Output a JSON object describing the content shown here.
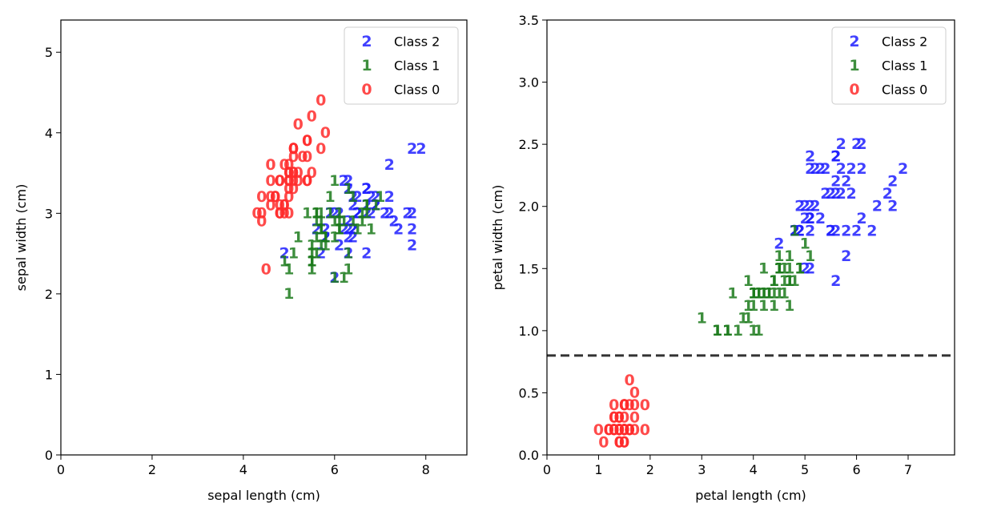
{
  "colors": {
    "class2": "#1f1fff",
    "class1": "#1b7a1b",
    "class0": "#ff2a2a",
    "threshold": "#333333"
  },
  "chart_data": [
    {
      "type": "scatter",
      "xlabel": "sepal length (cm)",
      "ylabel": "sepal width (cm)",
      "xlim": [
        0,
        8.9
      ],
      "ylim": [
        0,
        5.4
      ],
      "xticks": [
        "0",
        "2",
        "4",
        "6",
        "8"
      ],
      "xtick_values": [
        0,
        2,
        4,
        6,
        8
      ],
      "yticks": [
        "0",
        "1",
        "2",
        "3",
        "4",
        "5"
      ],
      "ytick_values": [
        0,
        1,
        2,
        3,
        4,
        5
      ],
      "legend_position": "top-right",
      "series": [
        {
          "name": "Class 2",
          "marker": "2",
          "color_key": "class2",
          "x": [
            6.3,
            5.8,
            7.1,
            6.3,
            6.5,
            7.6,
            4.9,
            7.3,
            6.7,
            7.2,
            6.5,
            6.4,
            6.8,
            5.7,
            5.8,
            6.4,
            6.5,
            7.7,
            7.7,
            6.0,
            6.9,
            5.6,
            7.7,
            6.3,
            6.7,
            7.2,
            6.2,
            6.1,
            6.4,
            7.2,
            7.4,
            7.9,
            6.4,
            6.3,
            6.1,
            7.7,
            6.3,
            6.4,
            6.0,
            6.9,
            6.7,
            6.9,
            5.8,
            6.8,
            6.7,
            6.7,
            6.3,
            6.5,
            6.2,
            5.9
          ],
          "y": [
            3.3,
            2.7,
            3.0,
            2.9,
            3.0,
            3.0,
            2.5,
            2.9,
            2.5,
            3.6,
            3.2,
            2.7,
            3.0,
            2.5,
            2.8,
            3.2,
            3.0,
            3.8,
            2.6,
            2.2,
            3.2,
            2.8,
            2.8,
            2.7,
            3.3,
            3.2,
            2.8,
            3.0,
            2.8,
            3.0,
            2.8,
            3.8,
            2.8,
            2.8,
            2.6,
            3.0,
            3.4,
            3.1,
            3.0,
            3.1,
            3.1,
            3.1,
            2.7,
            3.2,
            3.3,
            3.0,
            2.5,
            3.0,
            3.4,
            3.0
          ]
        },
        {
          "name": "Class 1",
          "marker": "1",
          "color_key": "class1",
          "x": [
            7.0,
            6.4,
            6.9,
            5.5,
            6.5,
            5.7,
            6.3,
            4.9,
            6.6,
            5.2,
            5.0,
            5.9,
            6.0,
            6.1,
            5.6,
            6.7,
            5.6,
            5.8,
            6.2,
            5.6,
            5.9,
            6.1,
            6.3,
            6.1,
            6.4,
            6.6,
            6.8,
            6.7,
            6.0,
            5.7,
            5.5,
            5.5,
            5.8,
            6.0,
            5.4,
            6.0,
            6.7,
            6.3,
            5.6,
            5.5,
            5.5,
            6.1,
            5.8,
            5.0,
            5.6,
            5.7,
            5.7,
            6.2,
            5.1,
            5.7
          ],
          "y": [
            3.2,
            3.2,
            3.1,
            2.3,
            2.8,
            2.8,
            3.3,
            2.4,
            2.9,
            2.7,
            2.0,
            3.0,
            2.2,
            2.9,
            2.9,
            3.1,
            3.0,
            2.7,
            2.2,
            2.5,
            3.2,
            2.8,
            2.5,
            2.8,
            2.9,
            3.0,
            2.8,
            3.0,
            2.9,
            2.6,
            2.4,
            2.4,
            2.7,
            2.7,
            3.0,
            3.4,
            3.1,
            2.3,
            3.0,
            2.5,
            2.6,
            3.0,
            2.6,
            2.3,
            2.7,
            3.0,
            2.9,
            2.9,
            2.5,
            2.8
          ]
        },
        {
          "name": "Class 0",
          "marker": "0",
          "color_key": "class0",
          "x": [
            5.1,
            4.9,
            4.7,
            4.6,
            5.0,
            5.4,
            4.6,
            5.0,
            4.4,
            4.9,
            5.4,
            4.8,
            4.8,
            4.3,
            5.8,
            5.7,
            5.4,
            5.1,
            5.7,
            5.1,
            5.4,
            5.1,
            4.6,
            5.1,
            4.8,
            5.0,
            5.0,
            5.2,
            5.2,
            4.7,
            4.8,
            5.4,
            5.2,
            5.5,
            4.9,
            5.0,
            5.5,
            4.9,
            4.4,
            5.1,
            5.0,
            4.5,
            4.4,
            5.0,
            5.1,
            4.8,
            5.1,
            4.6,
            5.3,
            5.0
          ],
          "y": [
            3.5,
            3.0,
            3.2,
            3.1,
            3.6,
            3.9,
            3.4,
            3.4,
            2.9,
            3.1,
            3.7,
            3.4,
            3.0,
            3.0,
            4.0,
            4.4,
            3.9,
            3.5,
            3.8,
            3.8,
            3.4,
            3.7,
            3.6,
            3.3,
            3.4,
            3.0,
            3.4,
            3.5,
            3.4,
            3.2,
            3.1,
            3.4,
            4.1,
            4.2,
            3.1,
            3.2,
            3.5,
            3.6,
            3.0,
            3.4,
            3.5,
            2.3,
            3.2,
            3.5,
            3.8,
            3.0,
            3.8,
            3.2,
            3.7,
            3.3
          ]
        }
      ]
    },
    {
      "type": "scatter",
      "xlabel": "petal length (cm)",
      "ylabel": "petal width (cm)",
      "xlim": [
        0,
        7.9
      ],
      "ylim": [
        0,
        3.5
      ],
      "xticks": [
        "0",
        "1",
        "2",
        "3",
        "4",
        "5",
        "6",
        "7"
      ],
      "xtick_values": [
        0,
        1,
        2,
        3,
        4,
        5,
        6,
        7
      ],
      "yticks": [
        "0.0",
        "0.5",
        "1.0",
        "1.5",
        "2.0",
        "2.5",
        "3.0",
        "3.5"
      ],
      "ytick_values": [
        0,
        0.5,
        1.0,
        1.5,
        2.0,
        2.5,
        3.0,
        3.5
      ],
      "hline": {
        "y": 0.8,
        "style": "dashed"
      },
      "legend_position": "top-right",
      "series": [
        {
          "name": "Class 2",
          "marker": "2",
          "color_key": "class2",
          "x": [
            6.0,
            5.1,
            5.9,
            5.6,
            5.8,
            6.6,
            4.5,
            6.3,
            5.8,
            6.1,
            5.1,
            5.3,
            5.5,
            5.0,
            5.1,
            5.3,
            5.5,
            6.7,
            6.9,
            5.0,
            5.7,
            4.9,
            6.7,
            4.9,
            5.7,
            6.0,
            4.8,
            4.9,
            5.6,
            5.8,
            6.1,
            6.4,
            5.6,
            5.1,
            5.6,
            6.1,
            5.6,
            5.5,
            4.8,
            5.4,
            5.6,
            5.1,
            5.1,
            5.9,
            5.7,
            5.2,
            5.0,
            5.2,
            5.4,
            5.1
          ],
          "y": [
            2.5,
            1.9,
            2.1,
            1.8,
            2.2,
            2.1,
            1.7,
            1.8,
            1.8,
            2.5,
            2.0,
            1.9,
            2.1,
            2.0,
            2.4,
            2.3,
            1.8,
            2.2,
            2.3,
            1.5,
            2.3,
            2.0,
            2.0,
            1.8,
            2.1,
            1.8,
            1.8,
            1.8,
            2.1,
            1.6,
            1.9,
            2.0,
            2.2,
            1.5,
            1.4,
            2.3,
            2.4,
            1.8,
            1.8,
            2.1,
            2.4,
            2.3,
            1.9,
            2.3,
            2.5,
            2.3,
            1.9,
            2.0,
            2.3,
            1.8
          ]
        },
        {
          "name": "Class 1",
          "marker": "1",
          "color_key": "class1",
          "x": [
            4.7,
            4.5,
            4.9,
            4.0,
            4.6,
            4.5,
            4.7,
            3.3,
            4.6,
            3.9,
            3.5,
            4.2,
            4.0,
            4.7,
            3.6,
            4.4,
            4.5,
            4.1,
            4.5,
            3.9,
            4.8,
            4.0,
            4.9,
            4.7,
            4.3,
            4.4,
            4.8,
            5.0,
            4.5,
            3.5,
            3.8,
            3.7,
            3.9,
            5.1,
            4.5,
            4.5,
            4.7,
            4.4,
            4.1,
            4.0,
            4.4,
            4.6,
            4.0,
            3.3,
            4.2,
            4.2,
            4.2,
            4.3,
            3.0,
            4.1
          ],
          "y": [
            1.4,
            1.5,
            1.5,
            1.3,
            1.5,
            1.3,
            1.6,
            1.0,
            1.3,
            1.4,
            1.0,
            1.5,
            1.0,
            1.4,
            1.3,
            1.4,
            1.5,
            1.0,
            1.5,
            1.1,
            1.8,
            1.3,
            1.5,
            1.2,
            1.3,
            1.4,
            1.4,
            1.7,
            1.5,
            1.0,
            1.1,
            1.0,
            1.2,
            1.6,
            1.5,
            1.6,
            1.5,
            1.3,
            1.3,
            1.3,
            1.2,
            1.4,
            1.2,
            1.0,
            1.3,
            1.2,
            1.3,
            1.3,
            1.1,
            1.3
          ]
        },
        {
          "name": "Class 0",
          "marker": "0",
          "color_key": "class0",
          "x": [
            1.4,
            1.4,
            1.3,
            1.5,
            1.4,
            1.7,
            1.4,
            1.5,
            1.4,
            1.5,
            1.5,
            1.6,
            1.4,
            1.1,
            1.2,
            1.5,
            1.3,
            1.4,
            1.7,
            1.5,
            1.7,
            1.5,
            1.0,
            1.7,
            1.9,
            1.6,
            1.6,
            1.5,
            1.4,
            1.6,
            1.6,
            1.5,
            1.5,
            1.4,
            1.5,
            1.2,
            1.3,
            1.4,
            1.3,
            1.5,
            1.3,
            1.3,
            1.3,
            1.6,
            1.9,
            1.4,
            1.6,
            1.4,
            1.5,
            1.4
          ],
          "y": [
            0.2,
            0.2,
            0.2,
            0.2,
            0.2,
            0.4,
            0.3,
            0.2,
            0.2,
            0.1,
            0.2,
            0.2,
            0.1,
            0.1,
            0.2,
            0.4,
            0.4,
            0.3,
            0.3,
            0.3,
            0.2,
            0.4,
            0.2,
            0.5,
            0.2,
            0.2,
            0.4,
            0.2,
            0.2,
            0.2,
            0.2,
            0.4,
            0.1,
            0.2,
            0.2,
            0.2,
            0.2,
            0.1,
            0.2,
            0.2,
            0.3,
            0.3,
            0.2,
            0.6,
            0.4,
            0.3,
            0.2,
            0.2,
            0.2,
            0.2
          ]
        }
      ]
    }
  ]
}
